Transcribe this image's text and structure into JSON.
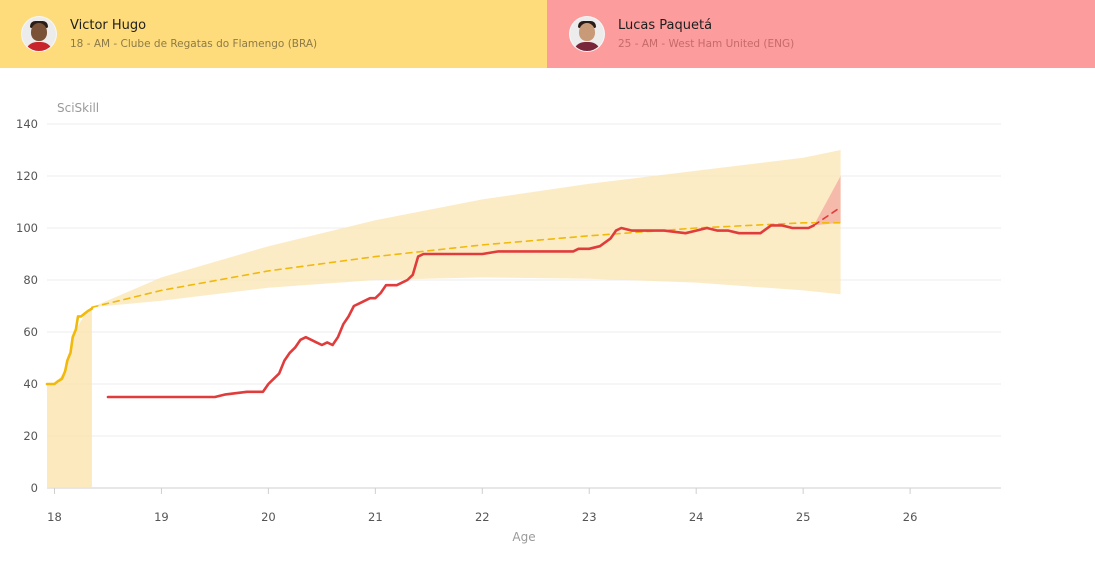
{
  "players": [
    {
      "name": "Victor Hugo",
      "meta": "18 - AM - Clube de Regatas do Flamengo (BRA)",
      "color": "#fedc7b",
      "avatar": "player-photo"
    },
    {
      "name": "Lucas Paquetá",
      "meta": "25 - AM - West Ham United (ENG)",
      "color": "#fd9c9c",
      "avatar": "player-photo"
    }
  ],
  "chart_data": {
    "type": "line",
    "ylabel": "SciSkill",
    "xlabel": "Age",
    "xlim": [
      17.93,
      26.85
    ],
    "ylim": [
      0,
      140
    ],
    "xticks": [
      18,
      19,
      20,
      21,
      22,
      23,
      24,
      25,
      26
    ],
    "yticks": [
      0,
      20,
      40,
      60,
      80,
      100,
      120,
      140
    ],
    "grid": "horizontal",
    "colors": {
      "victor_line": "#f0b90b",
      "victor_band": "#fbe6b3",
      "paqueta_line": "#e03c3c",
      "paqueta_band": "#f4a9a0"
    },
    "series": [
      {
        "name": "Victor Hugo",
        "style": "solid",
        "x": [
          17.93,
          18.0,
          18.03,
          18.07,
          18.1,
          18.12,
          18.15,
          18.17,
          18.2,
          18.22,
          18.25,
          18.28,
          18.31,
          18.35
        ],
        "y": [
          40,
          40,
          41,
          42,
          45,
          49,
          52,
          58,
          61,
          66,
          66,
          67,
          68,
          69
        ]
      },
      {
        "name": "Victor Hugo projection",
        "style": "dashed",
        "x": [
          18.35,
          19.0,
          20.0,
          21.0,
          22.0,
          23.0,
          24.0,
          25.0,
          25.35
        ],
        "y": [
          69.5,
          76,
          83.5,
          89,
          93.5,
          97,
          100,
          102,
          102
        ]
      },
      {
        "name": "Lucas Paquetá",
        "style": "solid",
        "x": [
          18.5,
          19.0,
          19.4,
          19.5,
          19.6,
          19.8,
          19.95,
          20.0,
          20.05,
          20.1,
          20.15,
          20.2,
          20.25,
          20.3,
          20.35,
          20.4,
          20.45,
          20.5,
          20.55,
          20.6,
          20.65,
          20.7,
          20.75,
          20.8,
          20.85,
          20.9,
          20.95,
          21.0,
          21.05,
          21.1,
          21.15,
          21.2,
          21.25,
          21.3,
          21.35,
          21.4,
          21.45,
          21.5,
          21.7,
          22.0,
          22.15,
          22.2,
          22.5,
          22.85,
          22.9,
          23.0,
          23.1,
          23.2,
          23.25,
          23.3,
          23.4,
          23.5,
          23.6,
          23.7,
          23.9,
          24.0,
          24.1,
          24.2,
          24.3,
          24.4,
          24.5,
          24.6,
          24.7,
          24.8,
          24.9,
          25.0,
          25.05,
          25.1
        ],
        "y": [
          35,
          35,
          35,
          35,
          36,
          37,
          37,
          40,
          42,
          44,
          49,
          52,
          54,
          57,
          58,
          57,
          56,
          55,
          56,
          55,
          58,
          63,
          66,
          70,
          71,
          72,
          73,
          73,
          75,
          78,
          78,
          78,
          79,
          80,
          82,
          89,
          90,
          90,
          90,
          90,
          91,
          91,
          91,
          91,
          92,
          92,
          93,
          96,
          99,
          100,
          99,
          99,
          99,
          99,
          98,
          99,
          100,
          99,
          99,
          98,
          98,
          98,
          101,
          101,
          100,
          100,
          100,
          101
        ]
      },
      {
        "name": "Lucas Paquetá projection",
        "style": "dashed",
        "x": [
          25.1,
          25.35
        ],
        "y": [
          101,
          108
        ]
      }
    ],
    "bands": [
      {
        "name": "Victor Hugo history band",
        "x": [
          17.93,
          18.0,
          18.1,
          18.2,
          18.3,
          18.35
        ],
        "y0": [
          0,
          0,
          0,
          0,
          0,
          0
        ],
        "y1": [
          40,
          40,
          45,
          61,
          68,
          69
        ]
      },
      {
        "name": "Victor Hugo projection band",
        "x": [
          18.35,
          19.0,
          20.0,
          21.0,
          22.0,
          23.0,
          24.0,
          25.0,
          25.35
        ],
        "y0": [
          69.5,
          72,
          77,
          80,
          81,
          80.5,
          79,
          76,
          74.5
        ],
        "y1": [
          69.5,
          81,
          93,
          103,
          111,
          117,
          122,
          127,
          130
        ]
      },
      {
        "name": "Lucas Paquetá projection band",
        "x": [
          25.1,
          25.35
        ],
        "y0": [
          101,
          102
        ],
        "y1": [
          101,
          120
        ]
      }
    ]
  }
}
